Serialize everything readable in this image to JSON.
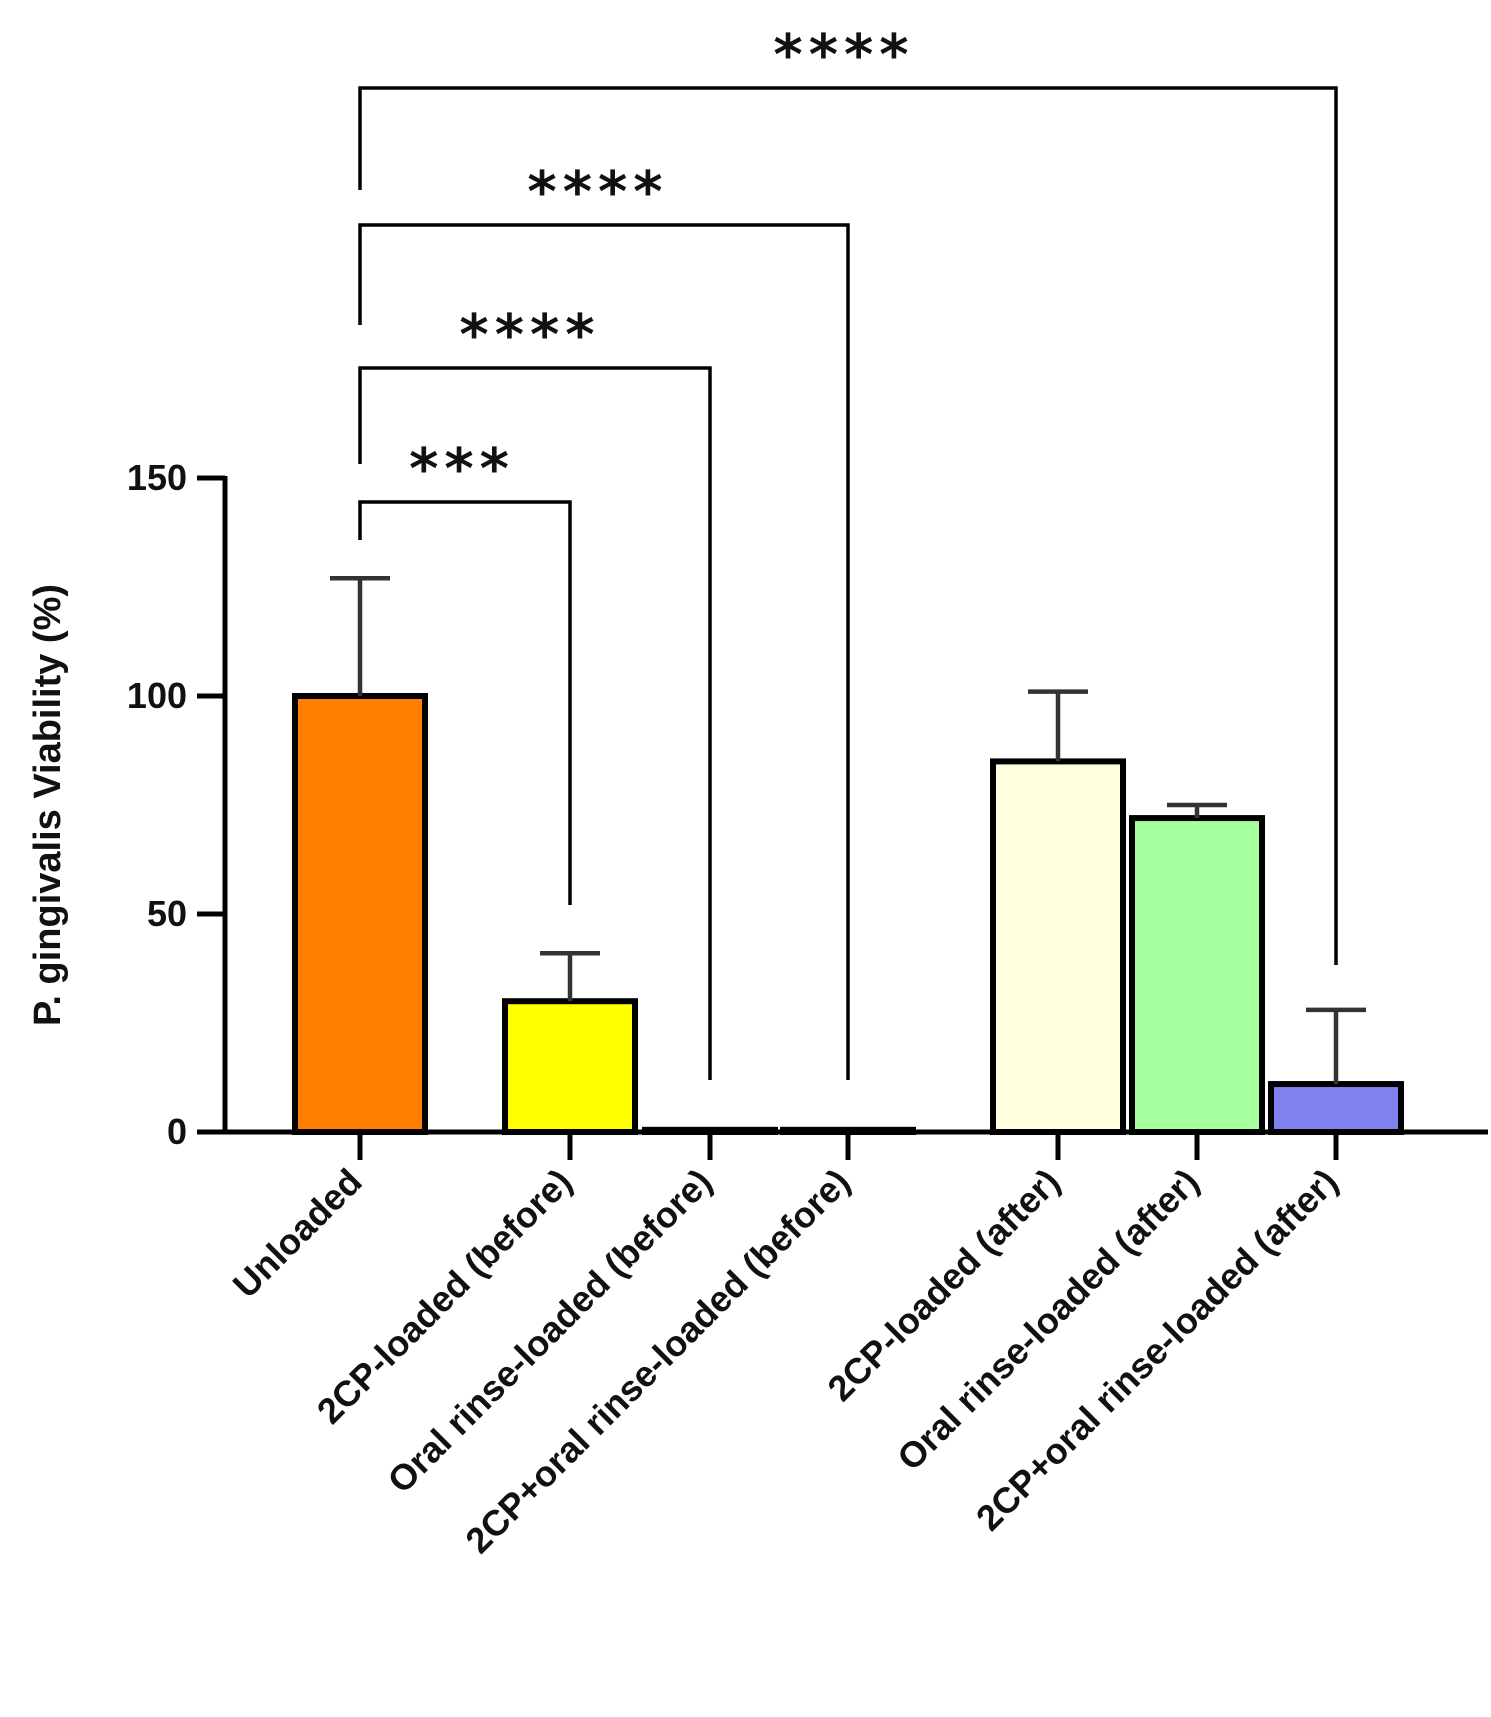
{
  "chart_data": {
    "type": "bar",
    "title": "",
    "xlabel": "",
    "ylabel": "P. gingivalis Viability (%)",
    "ylim": [
      0,
      150
    ],
    "yticks": [
      0,
      50,
      100,
      150
    ],
    "grid": false,
    "categories": [
      "Unloaded",
      "2CP-loaded (before)",
      "Oral rinse-loaded (before)",
      "2CP+oral rinse-loaded (before)",
      "2CP-loaded (after)",
      "Oral rinse-loaded (after)",
      "2CP+oral rinse-loaded (after)"
    ],
    "values": [
      100,
      30,
      0.5,
      0.5,
      85,
      72,
      11
    ],
    "errors": [
      27,
      11,
      0,
      0,
      16,
      3,
      17
    ],
    "colors": [
      "#ff8000",
      "#ffff00",
      "#ffffff",
      "#ffffff",
      "#ffffe0",
      "#a6ff9e",
      "#8080ee"
    ],
    "significance": [
      {
        "from": 0,
        "to": 1,
        "label": "***"
      },
      {
        "from": 0,
        "to": 2,
        "label": "****"
      },
      {
        "from": 0,
        "to": 3,
        "label": "****"
      },
      {
        "from": 0,
        "to": 6,
        "label": "****"
      }
    ]
  }
}
